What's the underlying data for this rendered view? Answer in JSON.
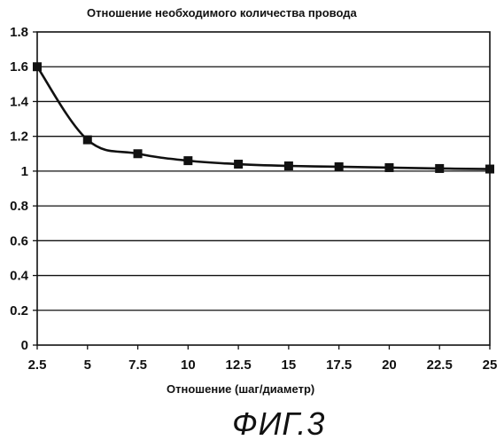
{
  "chart_data": {
    "type": "line",
    "title": "Отношение необходимого количества провода",
    "xlabel": "Отношение (шаг/диаметр)",
    "ylabel": "",
    "x": [
      2.5,
      5,
      7.5,
      10,
      12.5,
      15,
      17.5,
      20,
      22.5,
      25
    ],
    "x_tick_labels": [
      "2.5",
      "5",
      "7.5",
      "10",
      "12.5",
      "15",
      "17.5",
      "20",
      "22.5",
      "25"
    ],
    "y_ticks": [
      0,
      0.2,
      0.4,
      0.6,
      0.8,
      1,
      1.2,
      1.4,
      1.6,
      1.8
    ],
    "y_tick_labels": [
      "0",
      "0.2",
      "0.4",
      "0.6",
      "0.8",
      "1",
      "1.2",
      "1.4",
      "1.6",
      "1.8"
    ],
    "xlim": [
      2.5,
      25
    ],
    "ylim": [
      0,
      1.8
    ],
    "grid": "horizontal",
    "marker": "square",
    "series": [
      {
        "values": [
          1.6,
          1.18,
          1.1,
          1.06,
          1.04,
          1.03,
          1.025,
          1.02,
          1.015,
          1.012
        ]
      }
    ]
  },
  "caption": "ФИГ.3"
}
